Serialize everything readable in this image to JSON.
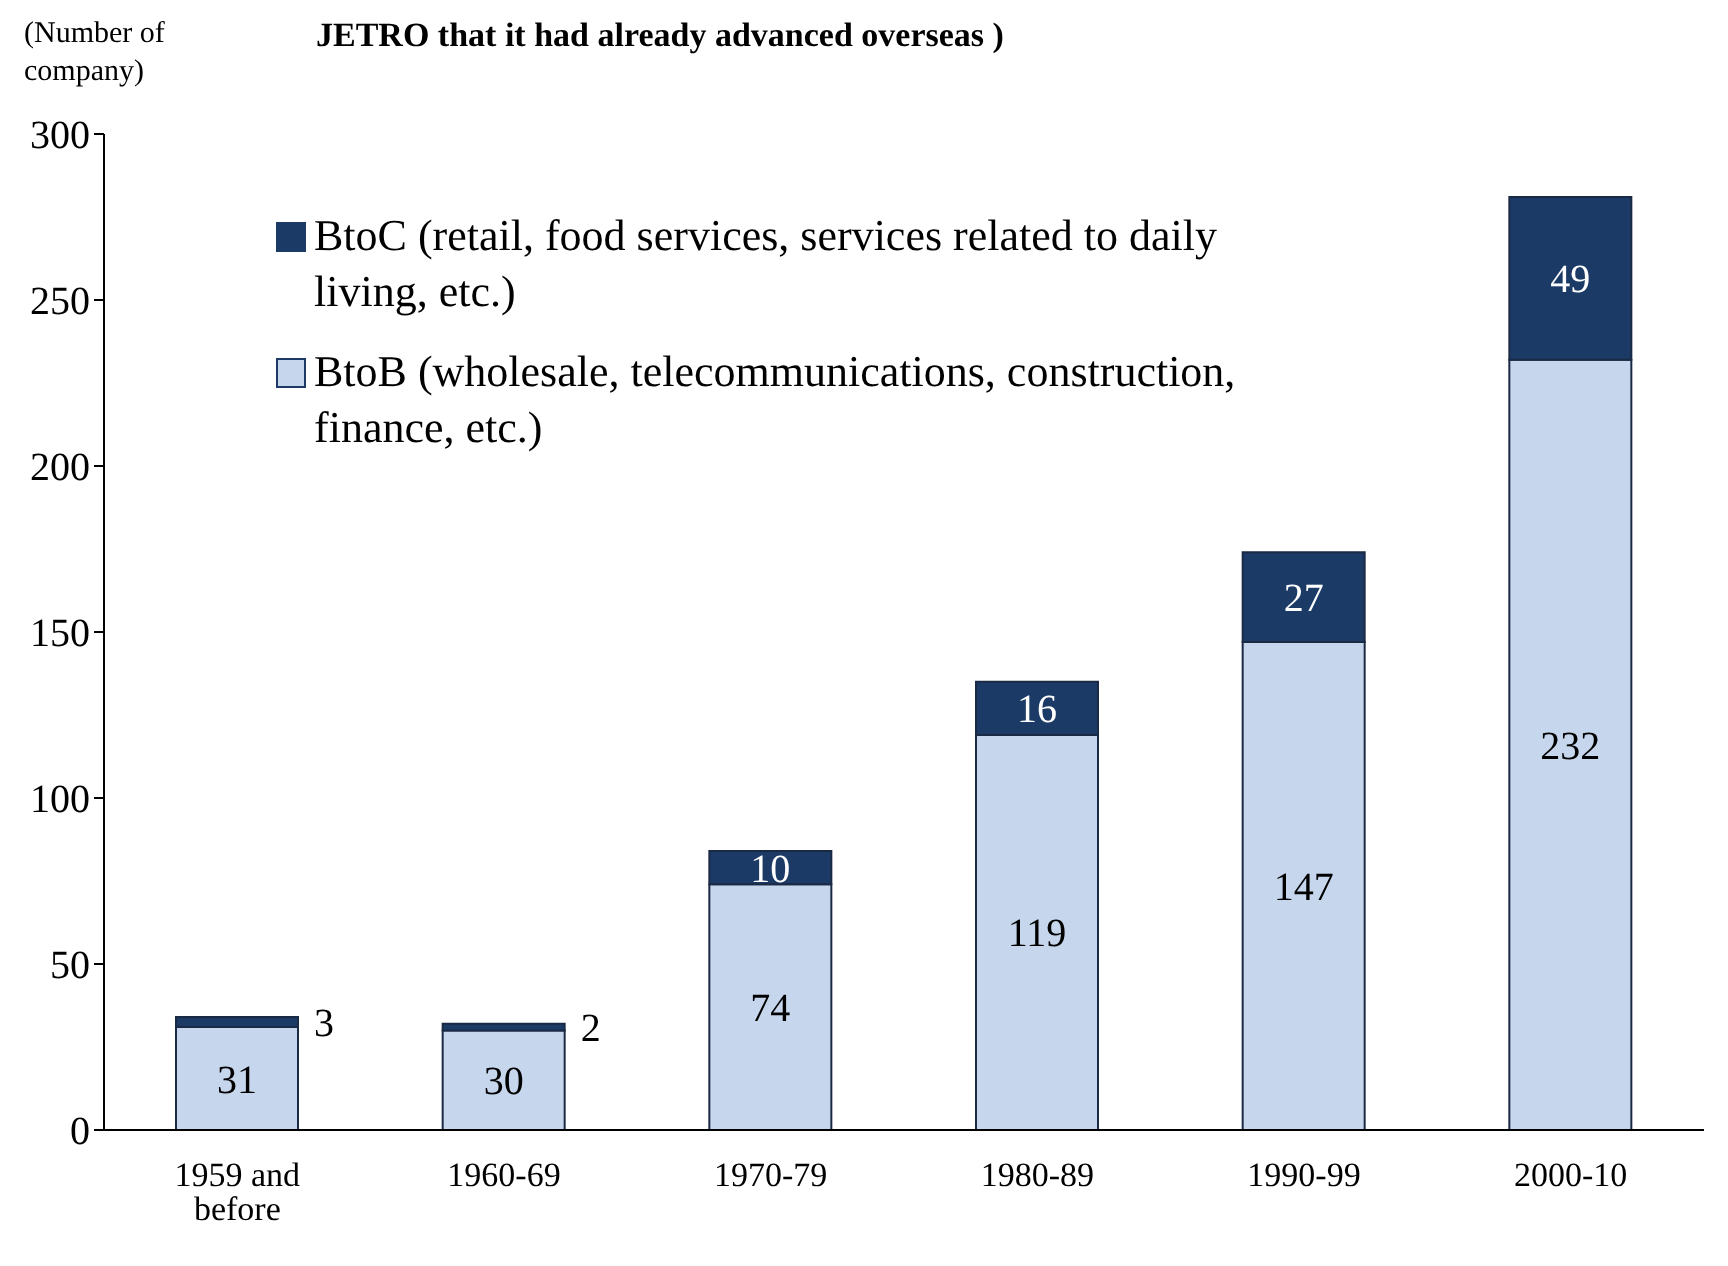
{
  "chart_data": {
    "type": "bar",
    "title": "JETRO that it had already advanced overseas )",
    "ylabel": "(Number of company)",
    "categories": [
      "1959 and before",
      "1960-69",
      "1970-79",
      "1980-89",
      "1990-99",
      "2000-10"
    ],
    "series": [
      {
        "name": "BtoB (wholesale, telecommunications, construction, finance, etc.)",
        "color": "#c6d6ec",
        "values": [
          31,
          30,
          74,
          119,
          147,
          232
        ]
      },
      {
        "name": "BtoC (retail, food services, services related to daily living, etc.)",
        "color": "#1b3a66",
        "values": [
          3,
          2,
          10,
          16,
          27,
          49
        ]
      }
    ],
    "stacked": true,
    "ylim": [
      0,
      300
    ],
    "yticks": [
      0,
      50,
      100,
      150,
      200,
      250,
      300
    ],
    "grid": false,
    "legend": "top left",
    "data_labels": true
  }
}
